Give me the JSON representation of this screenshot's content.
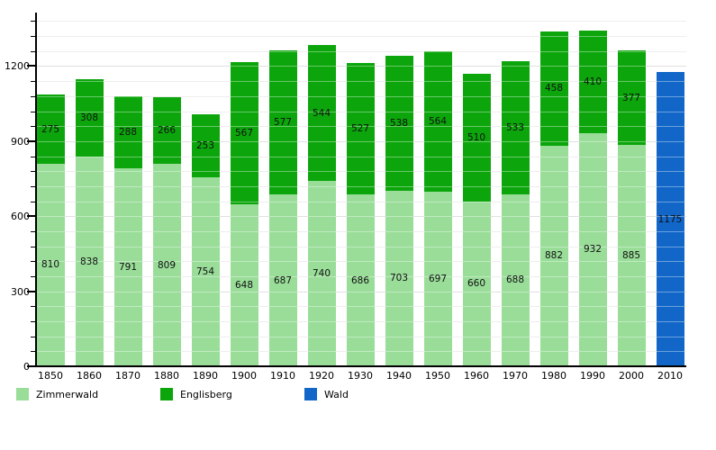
{
  "chart_data": {
    "type": "bar",
    "stacked": true,
    "title": "",
    "xlabel": "",
    "ylabel": "",
    "categories": [
      "1850",
      "1860",
      "1870",
      "1880",
      "1890",
      "1900",
      "1910",
      "1920",
      "1930",
      "1940",
      "1950",
      "1960",
      "1970",
      "1980",
      "1990",
      "2000",
      "2010"
    ],
    "series": [
      {
        "name": "Zimmerwald",
        "color": "#99dd99",
        "values": [
          810,
          838,
          791,
          809,
          754,
          648,
          687,
          740,
          686,
          703,
          697,
          660,
          688,
          882,
          932,
          885,
          null
        ]
      },
      {
        "name": "Englisberg",
        "color": "#0ca60c",
        "values": [
          275,
          308,
          288,
          266,
          253,
          567,
          577,
          544,
          527,
          538,
          564,
          510,
          533,
          458,
          410,
          377,
          null
        ]
      },
      {
        "name": "Wald",
        "color": "#1166c8",
        "values": [
          null,
          null,
          null,
          null,
          null,
          null,
          null,
          null,
          null,
          null,
          null,
          null,
          null,
          null,
          null,
          null,
          1175
        ]
      }
    ],
    "ylim": [
      0,
      1414
    ],
    "yticks": [
      0,
      300,
      600,
      900,
      1200
    ],
    "minor_tick_step": 60,
    "grid": true,
    "legend_position": "bottom"
  },
  "legend": {
    "items": [
      {
        "label": "Zimmerwald",
        "color": "#99dd99"
      },
      {
        "label": "Englisberg",
        "color": "#0ca60c"
      },
      {
        "label": "Wald",
        "color": "#1166c8"
      }
    ]
  }
}
